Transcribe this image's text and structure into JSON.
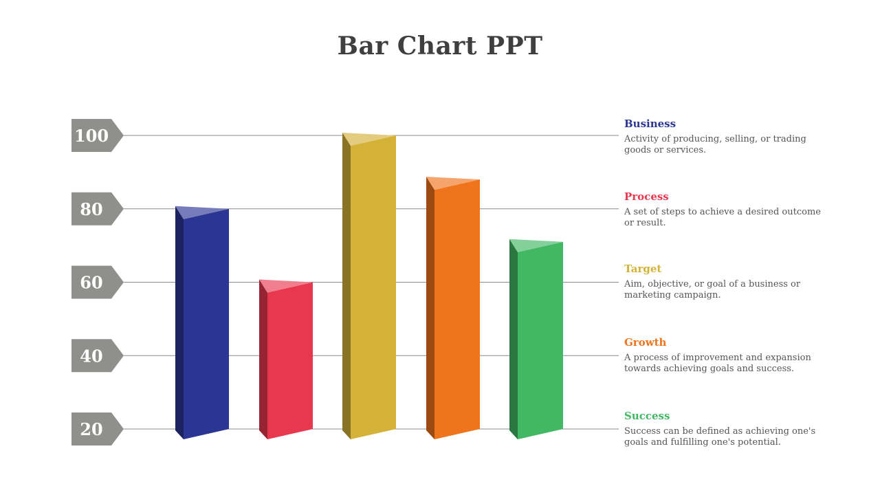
{
  "title": "Bar Chart PPT",
  "chart_data": {
    "type": "bar",
    "title": "Bar Chart PPT",
    "categories": [
      "Business",
      "Process",
      "Target",
      "Growth",
      "Success"
    ],
    "values": [
      80,
      60,
      100,
      88,
      71
    ],
    "colors": [
      "#2b3593",
      "#e8384f",
      "#d4b137",
      "#ef741c",
      "#42b764"
    ],
    "y_ticks": [
      "20",
      "40",
      "60",
      "80",
      "100"
    ],
    "ylim": [
      20,
      100
    ],
    "grid": true,
    "legend_position": "right"
  },
  "legend": [
    {
      "name": "Business",
      "description": "Activity of producing, selling, or trading goods or services.",
      "color": "#2b3593"
    },
    {
      "name": "Process",
      "description": "A set of steps to achieve a desired outcome or result.",
      "color": "#e8384f"
    },
    {
      "name": "Target",
      "description": "Aim, objective, or goal of a business or marketing campaign.",
      "color": "#d4b137"
    },
    {
      "name": "Growth",
      "description": "A process of improvement and expansion towards achieving goals and success.",
      "color": "#ef741c"
    },
    {
      "name": "Success",
      "description": "Success can be defined as achieving one's goals and fulfilling one's potential.",
      "color": "#42b764"
    }
  ]
}
